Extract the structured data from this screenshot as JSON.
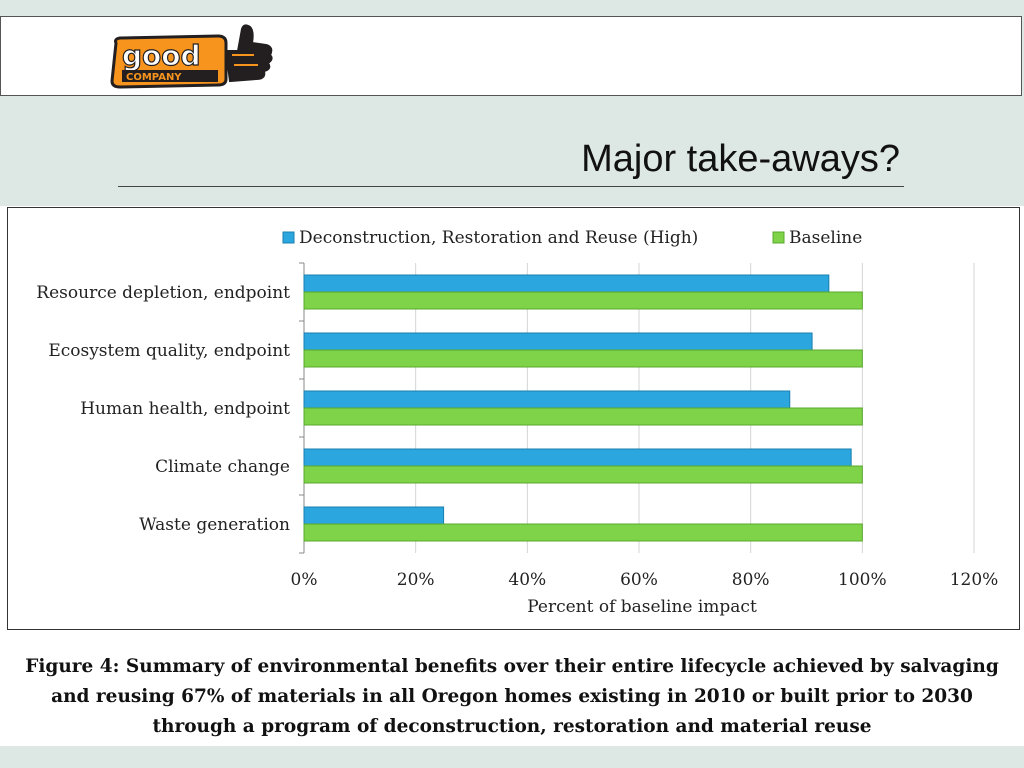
{
  "slide": {
    "title": "Major take-aways?",
    "logo": {
      "word_top": "good",
      "word_bottom": "COMPANY",
      "icon": "thumbs-up-icon",
      "colors": {
        "orange": "#f7941d",
        "dark": "#231f20"
      }
    }
  },
  "caption": "Figure 4: Summary of environmental benefits over their entire lifecycle achieved by salvaging and reusing 67% of materials in all Oregon homes existing in 2010 or built prior to 2030 through a program of deconstruction, restoration and material reuse",
  "chart_data": {
    "type": "bar",
    "orientation": "horizontal",
    "categories": [
      "Resource depletion, endpoint",
      "Ecosystem quality, endpoint",
      "Human health, endpoint",
      "Climate change",
      "Waste generation"
    ],
    "series": [
      {
        "name": "Deconstruction, Restoration and Reuse (High)",
        "values": [
          94,
          91,
          87,
          98,
          25
        ],
        "color": "#2ba6de"
      },
      {
        "name": "Baseline",
        "values": [
          100,
          100,
          100,
          100,
          100
        ],
        "color": "#7ed348"
      }
    ],
    "xlabel": "Percent of baseline impact",
    "xlim": [
      0,
      120
    ],
    "xticks": [
      "0%",
      "20%",
      "40%",
      "60%",
      "80%",
      "100%",
      "120%"
    ],
    "grid": true,
    "legend": "top"
  }
}
